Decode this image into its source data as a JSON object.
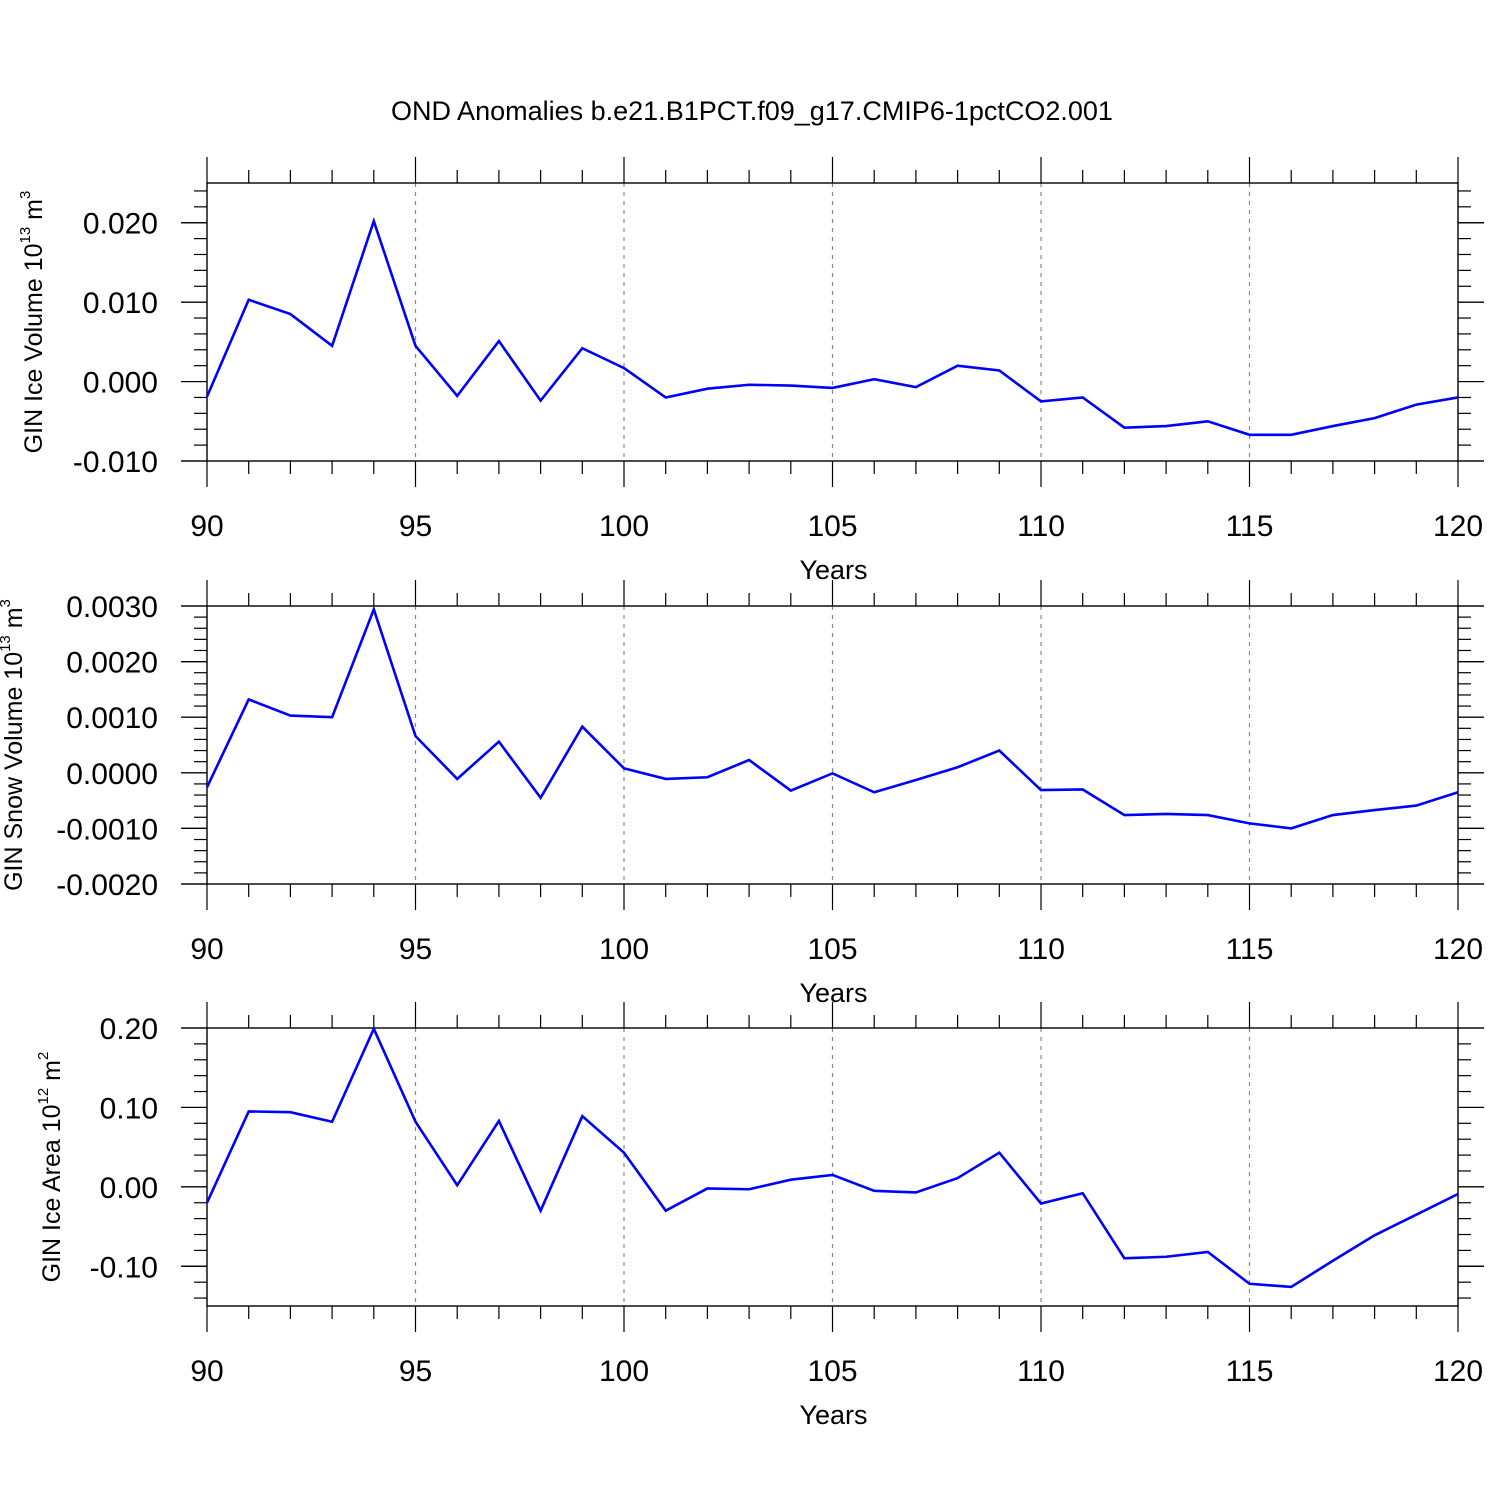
{
  "title": "OND Anomalies b.e21.B1PCT.f09_g17.CMIP6-1pctCO2.001",
  "colors": {
    "line": "#0000ff",
    "axis": "#000000",
    "grid": "#888888"
  },
  "chart_data": [
    {
      "type": "line",
      "ylabel": {
        "text": "GIN Ice Volume 10",
        "exp": "13",
        "unit": " m",
        "unit_exp": "3"
      },
      "xlabel": "Years",
      "xlim": [
        90,
        120
      ],
      "ylim": [
        -0.01,
        0.025
      ],
      "xticks": [
        90,
        95,
        100,
        105,
        110,
        115,
        120
      ],
      "xtick_labels": [
        "90",
        "95",
        "100",
        "105",
        "110",
        "115",
        "120"
      ],
      "yticks": [
        -0.01,
        0.0,
        0.01,
        0.02
      ],
      "ytick_labels": [
        "-0.010",
        "0.000",
        "0.010",
        "0.020"
      ],
      "grid": "vertical dashed at major x ticks",
      "series": [
        {
          "x": [
            90,
            91,
            92,
            93,
            94,
            95,
            96,
            97,
            98,
            99,
            100,
            101,
            102,
            103,
            104,
            105,
            106,
            107,
            108,
            109,
            110,
            111,
            112,
            113,
            114,
            115,
            116,
            117,
            118,
            119,
            120
          ],
          "values": [
            -0.0019,
            0.0103,
            0.0085,
            0.0045,
            0.0202,
            0.0045,
            -0.0018,
            0.0051,
            -0.0024,
            0.0042,
            0.0017,
            -0.002,
            -0.0009,
            -0.0004,
            -0.0005,
            -0.0008,
            0.0003,
            -0.0007,
            0.002,
            0.0014,
            -0.0025,
            -0.002,
            -0.0058,
            -0.0056,
            -0.005,
            -0.0067,
            -0.0067,
            -0.0056,
            -0.0046,
            -0.0029,
            -0.002
          ]
        }
      ]
    },
    {
      "type": "line",
      "ylabel": {
        "text": "GIN Snow Volume 10",
        "exp": "13",
        "unit": " m",
        "unit_exp": "3"
      },
      "xlabel": "Years",
      "xlim": [
        90,
        120
      ],
      "ylim": [
        -0.002,
        0.003
      ],
      "xticks": [
        90,
        95,
        100,
        105,
        110,
        115,
        120
      ],
      "xtick_labels": [
        "90",
        "95",
        "100",
        "105",
        "110",
        "115",
        "120"
      ],
      "yticks": [
        -0.002,
        -0.001,
        0.0,
        0.001,
        0.002,
        0.003
      ],
      "ytick_labels": [
        "-0.0020",
        "-0.0010",
        "0.0000",
        "0.0010",
        "0.0020",
        "0.0030"
      ],
      "grid": "vertical dashed at major x ticks",
      "series": [
        {
          "x": [
            90,
            91,
            92,
            93,
            94,
            95,
            96,
            97,
            98,
            99,
            100,
            101,
            102,
            103,
            104,
            105,
            106,
            107,
            108,
            109,
            110,
            111,
            112,
            113,
            114,
            115,
            116,
            117,
            118,
            119,
            120
          ],
          "values": [
            -0.00026,
            0.00132,
            0.00103,
            0.001,
            0.00294,
            0.00066,
            -0.00011,
            0.00056,
            -0.00045,
            0.00083,
            8e-05,
            -0.00011,
            -8e-05,
            0.00023,
            -0.00032,
            -1e-05,
            -0.00035,
            -0.00013,
            0.0001,
            0.0004,
            -0.00031,
            -0.0003,
            -0.00076,
            -0.00074,
            -0.00076,
            -0.00091,
            -0.001,
            -0.00076,
            -0.00067,
            -0.00059,
            -0.00035
          ]
        }
      ]
    },
    {
      "type": "line",
      "ylabel": {
        "text": "GIN Ice Area 10",
        "exp": "12",
        "unit": " m",
        "unit_exp": "2"
      },
      "xlabel": "Years",
      "xlim": [
        90,
        120
      ],
      "ylim": [
        -0.15,
        0.2
      ],
      "xticks": [
        90,
        95,
        100,
        105,
        110,
        115,
        120
      ],
      "xtick_labels": [
        "90",
        "95",
        "100",
        "105",
        "110",
        "115",
        "120"
      ],
      "yticks": [
        -0.1,
        0.0,
        0.1,
        0.2
      ],
      "ytick_labels": [
        "-0.10",
        "0.00",
        "0.10",
        "0.20"
      ],
      "grid": "vertical dashed at major x ticks",
      "series": [
        {
          "x": [
            90,
            91,
            92,
            93,
            94,
            95,
            96,
            97,
            98,
            99,
            100,
            101,
            102,
            103,
            104,
            105,
            106,
            107,
            108,
            109,
            110,
            111,
            112,
            113,
            114,
            115,
            116,
            117,
            118,
            119,
            120
          ],
          "values": [
            -0.02,
            0.095,
            0.094,
            0.082,
            0.199,
            0.082,
            0.002,
            0.083,
            -0.03,
            0.089,
            0.043,
            -0.03,
            -0.002,
            -0.003,
            0.009,
            0.015,
            -0.005,
            -0.007,
            0.011,
            0.043,
            -0.021,
            -0.008,
            -0.09,
            -0.088,
            -0.082,
            -0.122,
            -0.126,
            -0.093,
            -0.061,
            -0.035,
            -0.009
          ]
        }
      ]
    }
  ]
}
